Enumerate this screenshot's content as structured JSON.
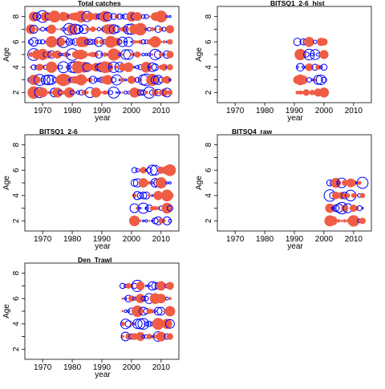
{
  "figure": {
    "ylabel": "Age",
    "xlabel": "year",
    "x_ticks": [
      1970,
      1980,
      1990,
      2000,
      2010
    ],
    "y_ticks": [
      2,
      4,
      6,
      8
    ],
    "xlim": [
      1964,
      2016
    ],
    "ylim": [
      1.2,
      8.8
    ],
    "colors": {
      "positive": "#ef5d45",
      "negative": "#0000ff",
      "frame": "#000000"
    }
  },
  "chart_data": [
    {
      "type": "scatter",
      "title": "Total catches",
      "xlabel": "year",
      "ylabel": "Age",
      "xlim": [
        1964,
        2016
      ],
      "ylim": [
        1.2,
        8.8
      ],
      "bubbles": "residuals: filled red = positive, open blue = negative",
      "years_range": [
        1966,
        2013
      ],
      "ages": [
        2,
        3,
        4,
        5,
        6,
        7,
        8
      ]
    },
    {
      "type": "scatter",
      "title": "BITSQ1_2-6_hist",
      "xlabel": "year",
      "ylabel": "Age",
      "xlim": [
        1964,
        2016
      ],
      "ylim": [
        1.2,
        8.8
      ],
      "years_range": [
        1991,
        2000
      ],
      "ages": [
        2,
        3,
        4,
        5,
        6
      ]
    },
    {
      "type": "scatter",
      "title": "BITSQ1_2-6",
      "xlabel": "year",
      "ylabel": "Age",
      "xlim": [
        1964,
        2016
      ],
      "ylim": [
        1.2,
        8.8
      ],
      "years_range": [
        2001,
        2013
      ],
      "ages": [
        2,
        3,
        4,
        5,
        6
      ]
    },
    {
      "type": "scatter",
      "title": "BITSQ4_raw",
      "xlabel": "year",
      "ylabel": "Age",
      "xlim": [
        1964,
        2016
      ],
      "ylim": [
        1.2,
        8.8
      ],
      "years_range": [
        2002,
        2013
      ],
      "ages": [
        2,
        3,
        4,
        5
      ]
    },
    {
      "type": "scatter",
      "title": "Den_Trawl",
      "xlabel": "year",
      "ylabel": "Age",
      "xlim": [
        1964,
        2016
      ],
      "ylim": [
        1.2,
        8.8
      ],
      "years_range": [
        1997,
        2013
      ],
      "ages": [
        3,
        4,
        5,
        6,
        7
      ]
    }
  ]
}
